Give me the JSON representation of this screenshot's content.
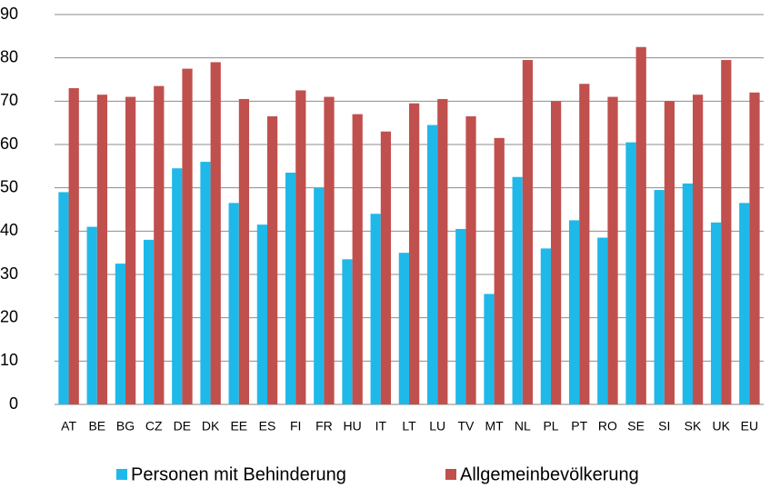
{
  "chart_data": {
    "type": "bar",
    "categories": [
      "AT",
      "BE",
      "BG",
      "CZ",
      "DE",
      "DK",
      "EE",
      "ES",
      "FI",
      "FR",
      "HU",
      "IT",
      "LT",
      "LU",
      "TV",
      "MT",
      "NL",
      "PL",
      "PT",
      "RO",
      "SE",
      "SI",
      "SK",
      "UK",
      "EU"
    ],
    "series": [
      {
        "name": "Personen mit Behinderung",
        "color": "#1fb9e9",
        "values": [
          49,
          41,
          32.5,
          38,
          54.5,
          56,
          46.5,
          41.5,
          53.5,
          50,
          33.5,
          44,
          35,
          64.5,
          40.5,
          25.5,
          52.5,
          36,
          42.5,
          38.5,
          60.5,
          49.5,
          51,
          42,
          46.5
        ]
      },
      {
        "name": "Allgemeinbevölkerung",
        "color": "#c0504d",
        "values": [
          73,
          71.5,
          71,
          73.5,
          77.5,
          79,
          70.5,
          66.5,
          72.5,
          71,
          67,
          63,
          69.5,
          70.5,
          66.5,
          61.5,
          79.5,
          70,
          74,
          71,
          82.5,
          70,
          71.5,
          79.5,
          72
        ]
      }
    ],
    "ylim": [
      0,
      90
    ],
    "yticks": [
      0,
      10,
      20,
      30,
      40,
      50,
      60,
      70,
      80,
      90
    ],
    "grid": true,
    "legend": "bottom"
  }
}
